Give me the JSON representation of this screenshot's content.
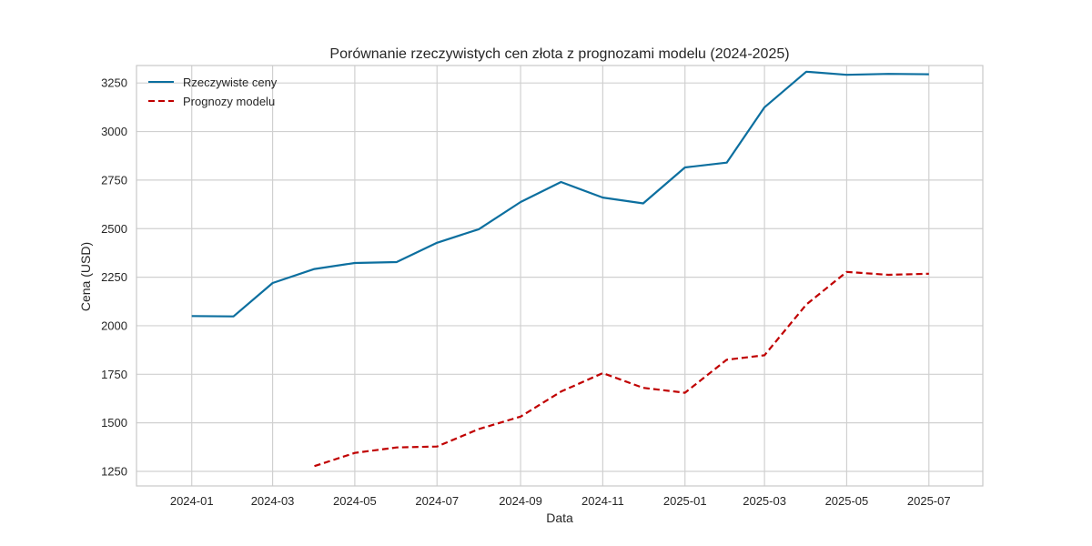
{
  "chart_data": {
    "type": "line",
    "title": "Porównanie rzeczywistych cen złota z prognozami modelu (2024-2025)",
    "xlabel": "Data",
    "ylabel": "Cena (USD)",
    "x_ticks": [
      "2024-01",
      "2024-03",
      "2024-05",
      "2024-07",
      "2024-09",
      "2024-11",
      "2025-01",
      "2025-03",
      "2025-05",
      "2025-07"
    ],
    "y_ticks": [
      1250,
      1500,
      1750,
      2000,
      2250,
      2500,
      2750,
      3000,
      3250
    ],
    "xlim": [
      "2023-11-21",
      "2025-08-10"
    ],
    "ylim": [
      1175,
      3340
    ],
    "grid": true,
    "legend_position": "top-left",
    "series": [
      {
        "name": "Rzeczywiste ceny",
        "color": "#0c6f9f",
        "style": "solid",
        "x": [
          "2024-01-01",
          "2024-02-01",
          "2024-03-01",
          "2024-04-01",
          "2024-05-01",
          "2024-06-01",
          "2024-07-01",
          "2024-08-01",
          "2024-09-01",
          "2024-10-01",
          "2024-11-01",
          "2024-12-01",
          "2025-01-01",
          "2025-02-01",
          "2025-03-01",
          "2025-04-01",
          "2025-05-01",
          "2025-06-01",
          "2025-07-01"
        ],
        "values": [
          2050,
          2048,
          2220,
          2292,
          2323,
          2328,
          2427,
          2497,
          2637,
          2740,
          2660,
          2630,
          2815,
          2840,
          3125,
          3308,
          3292,
          3297,
          3295
        ]
      },
      {
        "name": "Prognozy modelu",
        "color": "#c00000",
        "style": "dashed",
        "x": [
          "2024-04-01",
          "2024-05-01",
          "2024-06-01",
          "2024-07-01",
          "2024-08-01",
          "2024-09-01",
          "2024-10-01",
          "2024-11-01",
          "2024-12-01",
          "2025-01-01",
          "2025-02-01",
          "2025-03-01",
          "2025-04-01",
          "2025-05-01",
          "2025-06-01",
          "2025-07-01"
        ],
        "values": [
          1277,
          1345,
          1373,
          1378,
          1468,
          1532,
          1661,
          1756,
          1680,
          1655,
          1825,
          1848,
          2109,
          2277,
          2262,
          2268
        ]
      }
    ]
  }
}
